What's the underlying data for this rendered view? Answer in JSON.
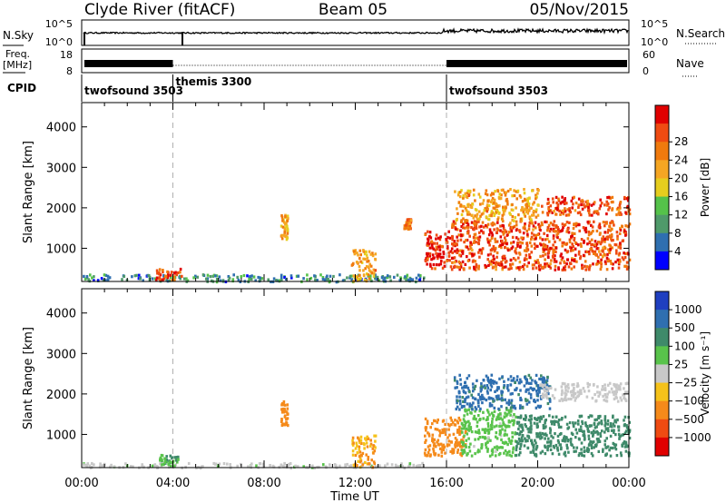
{
  "header": {
    "station": "Clyde River (fitACF)",
    "beam": "Beam 05",
    "date": "05/Nov/2015"
  },
  "status": {
    "nsky_label": "N.Sky",
    "nsky_ticks": [
      "10^5",
      "10^0"
    ],
    "nsearch_label": "N.Search",
    "nsearch_ticks": [
      "10^5",
      "10^0"
    ],
    "freq_label_1": "Freq.",
    "freq_label_2": "[MHz]",
    "freq_ticks": [
      "18",
      "8"
    ],
    "nave_label": "Nave",
    "nave_ticks": [
      "60",
      "0"
    ],
    "cpid_label": "CPID",
    "cpid_segments": [
      {
        "name": "twofsound",
        "id": "3503",
        "start_hour": 0
      },
      {
        "name": "themis",
        "id": "3300",
        "start_hour": 4
      },
      {
        "name": "twofsound",
        "id": "3503",
        "start_hour": 16
      }
    ]
  },
  "chart_data": [
    {
      "type": "heatmap",
      "panel": "power",
      "ylabel": "Slant Range [km]",
      "xlabel": "Time UT",
      "xlim": [
        0,
        24
      ],
      "ylim": [
        180,
        4600
      ],
      "y_ticks": [
        1000,
        2000,
        3000,
        4000
      ],
      "x_ticks": [
        "00:00",
        "04:00",
        "08:00",
        "12:00",
        "16:00",
        "20:00",
        "00:00"
      ],
      "colorbar": {
        "label": "Power [dB]",
        "tick_labels": [
          "4",
          "8",
          "12",
          "16",
          "20",
          "24",
          "28"
        ],
        "colors": [
          "#0000ff",
          "#2f6fb0",
          "#4f9a6a",
          "#55c24a",
          "#e6cd1e",
          "#f5a623",
          "#f07a0e",
          "#ef4b12",
          "#e00000"
        ]
      },
      "regions": [
        {
          "t0": 0.0,
          "t1": 15.0,
          "r0": 200,
          "r1": 380,
          "value": 8
        },
        {
          "t0": 3.2,
          "t1": 4.4,
          "r0": 240,
          "r1": 520,
          "value": 26
        },
        {
          "t0": 8.7,
          "t1": 9.0,
          "r0": 1250,
          "r1": 1850,
          "value": 20
        },
        {
          "t0": 11.8,
          "t1": 12.9,
          "r0": 220,
          "r1": 1000,
          "value": 20
        },
        {
          "t0": 14.1,
          "t1": 14.4,
          "r0": 1500,
          "r1": 1750,
          "value": 24
        },
        {
          "t0": 15.0,
          "t1": 16.4,
          "r0": 500,
          "r1": 1450,
          "value": 29
        },
        {
          "t0": 16.2,
          "t1": 24.0,
          "r0": 500,
          "r1": 1700,
          "value": 26
        },
        {
          "t0": 16.3,
          "t1": 20.0,
          "r0": 1700,
          "r1": 2500,
          "value": 20
        },
        {
          "t0": 20.0,
          "t1": 24.0,
          "r0": 1850,
          "r1": 2300,
          "value": 26
        }
      ]
    },
    {
      "type": "heatmap",
      "panel": "velocity",
      "ylabel": "Slant Range [km]",
      "xlabel": "Time UT",
      "xlim": [
        0,
        24
      ],
      "ylim": [
        180,
        4600
      ],
      "y_ticks": [
        1000,
        2000,
        3000,
        4000
      ],
      "x_ticks": [
        "00:00",
        "04:00",
        "08:00",
        "12:00",
        "16:00",
        "20:00",
        "00:00"
      ],
      "colorbar": {
        "label": "Velocity [m s⁻¹]",
        "tick_labels": [
          "1000",
          "500",
          "100",
          "25",
          "−25",
          "−100",
          "−500",
          "−1000"
        ],
        "colors": [
          "#1f3fc0",
          "#2f6fb0",
          "#3f8a6a",
          "#59c34b",
          "#c8c8c8",
          "#f5c21a",
          "#f58a1a",
          "#ef4b12",
          "#e00000"
        ]
      },
      "regions": [
        {
          "t0": 0.0,
          "t1": 15.0,
          "r0": 200,
          "r1": 320,
          "value": 10
        },
        {
          "t0": 3.3,
          "t1": 4.2,
          "r0": 240,
          "r1": 520,
          "value": 80
        },
        {
          "t0": 8.7,
          "t1": 9.0,
          "r0": 1250,
          "r1": 1850,
          "value": -300
        },
        {
          "t0": 11.8,
          "t1": 12.9,
          "r0": 220,
          "r1": 1000,
          "value": -100
        },
        {
          "t0": 15.0,
          "t1": 16.8,
          "r0": 500,
          "r1": 1450,
          "value": -300
        },
        {
          "t0": 16.6,
          "t1": 19.0,
          "r0": 500,
          "r1": 1650,
          "value": 60
        },
        {
          "t0": 19.0,
          "t1": 24.0,
          "r0": 500,
          "r1": 1500,
          "value": 300
        },
        {
          "t0": 16.3,
          "t1": 20.5,
          "r0": 1650,
          "r1": 2500,
          "value": 700
        },
        {
          "t0": 20.0,
          "t1": 24.0,
          "r0": 1850,
          "r1": 2300,
          "value": 0
        }
      ]
    }
  ]
}
